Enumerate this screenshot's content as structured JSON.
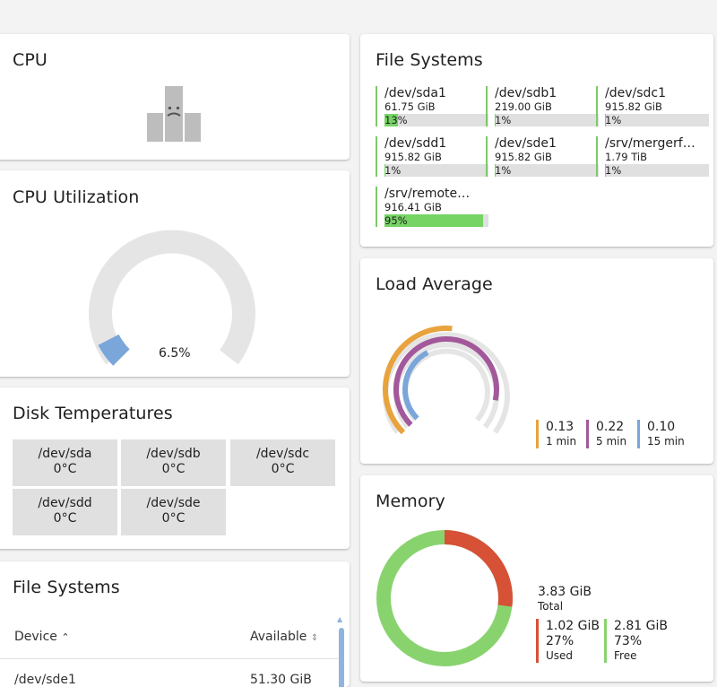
{
  "cpu": {
    "title": "CPU"
  },
  "cpu_util": {
    "title": "CPU Utilization",
    "value": "6.5%",
    "percent": 6.5,
    "accent": "#7aa6da"
  },
  "disk_temps": {
    "title": "Disk Temperatures",
    "items": [
      {
        "device": "/dev/sda",
        "temp": "0°C"
      },
      {
        "device": "/dev/sdb",
        "temp": "0°C"
      },
      {
        "device": "/dev/sdc",
        "temp": "0°C"
      },
      {
        "device": "/dev/sdd",
        "temp": "0°C"
      },
      {
        "device": "/dev/sde",
        "temp": "0°C"
      }
    ]
  },
  "fs_table": {
    "title": "File Systems",
    "col_device": "Device",
    "col_available": "Available",
    "row1_device": "/dev/sde1",
    "row1_available": "51.30 GiB"
  },
  "file_systems": {
    "title": "File Systems",
    "items": [
      {
        "name": "/dev/sda1",
        "size": "61.75 GiB",
        "pct": "13%",
        "used": 13
      },
      {
        "name": "/dev/sdb1",
        "size": "219.00 GiB",
        "pct": "1%",
        "used": 1
      },
      {
        "name": "/dev/sdc1",
        "size": "915.82 GiB",
        "pct": "1%",
        "used": 1
      },
      {
        "name": "/dev/sdd1",
        "size": "915.82 GiB",
        "pct": "1%",
        "used": 1
      },
      {
        "name": "/dev/sde1",
        "size": "915.82 GiB",
        "pct": "1%",
        "used": 1
      },
      {
        "name": "/srv/mergerf…",
        "size": "1.79 TiB",
        "pct": "1%",
        "used": 1
      },
      {
        "name": "/srv/remote…",
        "size": "916.41 GiB",
        "pct": "95%",
        "used": 95
      }
    ]
  },
  "load_average": {
    "title": "Load Average",
    "items": [
      {
        "value": "0.13",
        "label": "1 min",
        "color": "#e8a33d"
      },
      {
        "value": "0.22",
        "label": "5 min",
        "color": "#a3589b"
      },
      {
        "value": "0.10",
        "label": "15 min",
        "color": "#7aa6da"
      }
    ]
  },
  "memory": {
    "title": "Memory",
    "total": "3.83 GiB",
    "total_label": "Total",
    "used": {
      "size": "1.02 GiB",
      "pct": "27%",
      "label": "Used",
      "color": "#d65136",
      "fraction": 0.27
    },
    "free": {
      "size": "2.81 GiB",
      "pct": "73%",
      "label": "Free",
      "color": "#89d36f",
      "fraction": 0.73
    }
  }
}
